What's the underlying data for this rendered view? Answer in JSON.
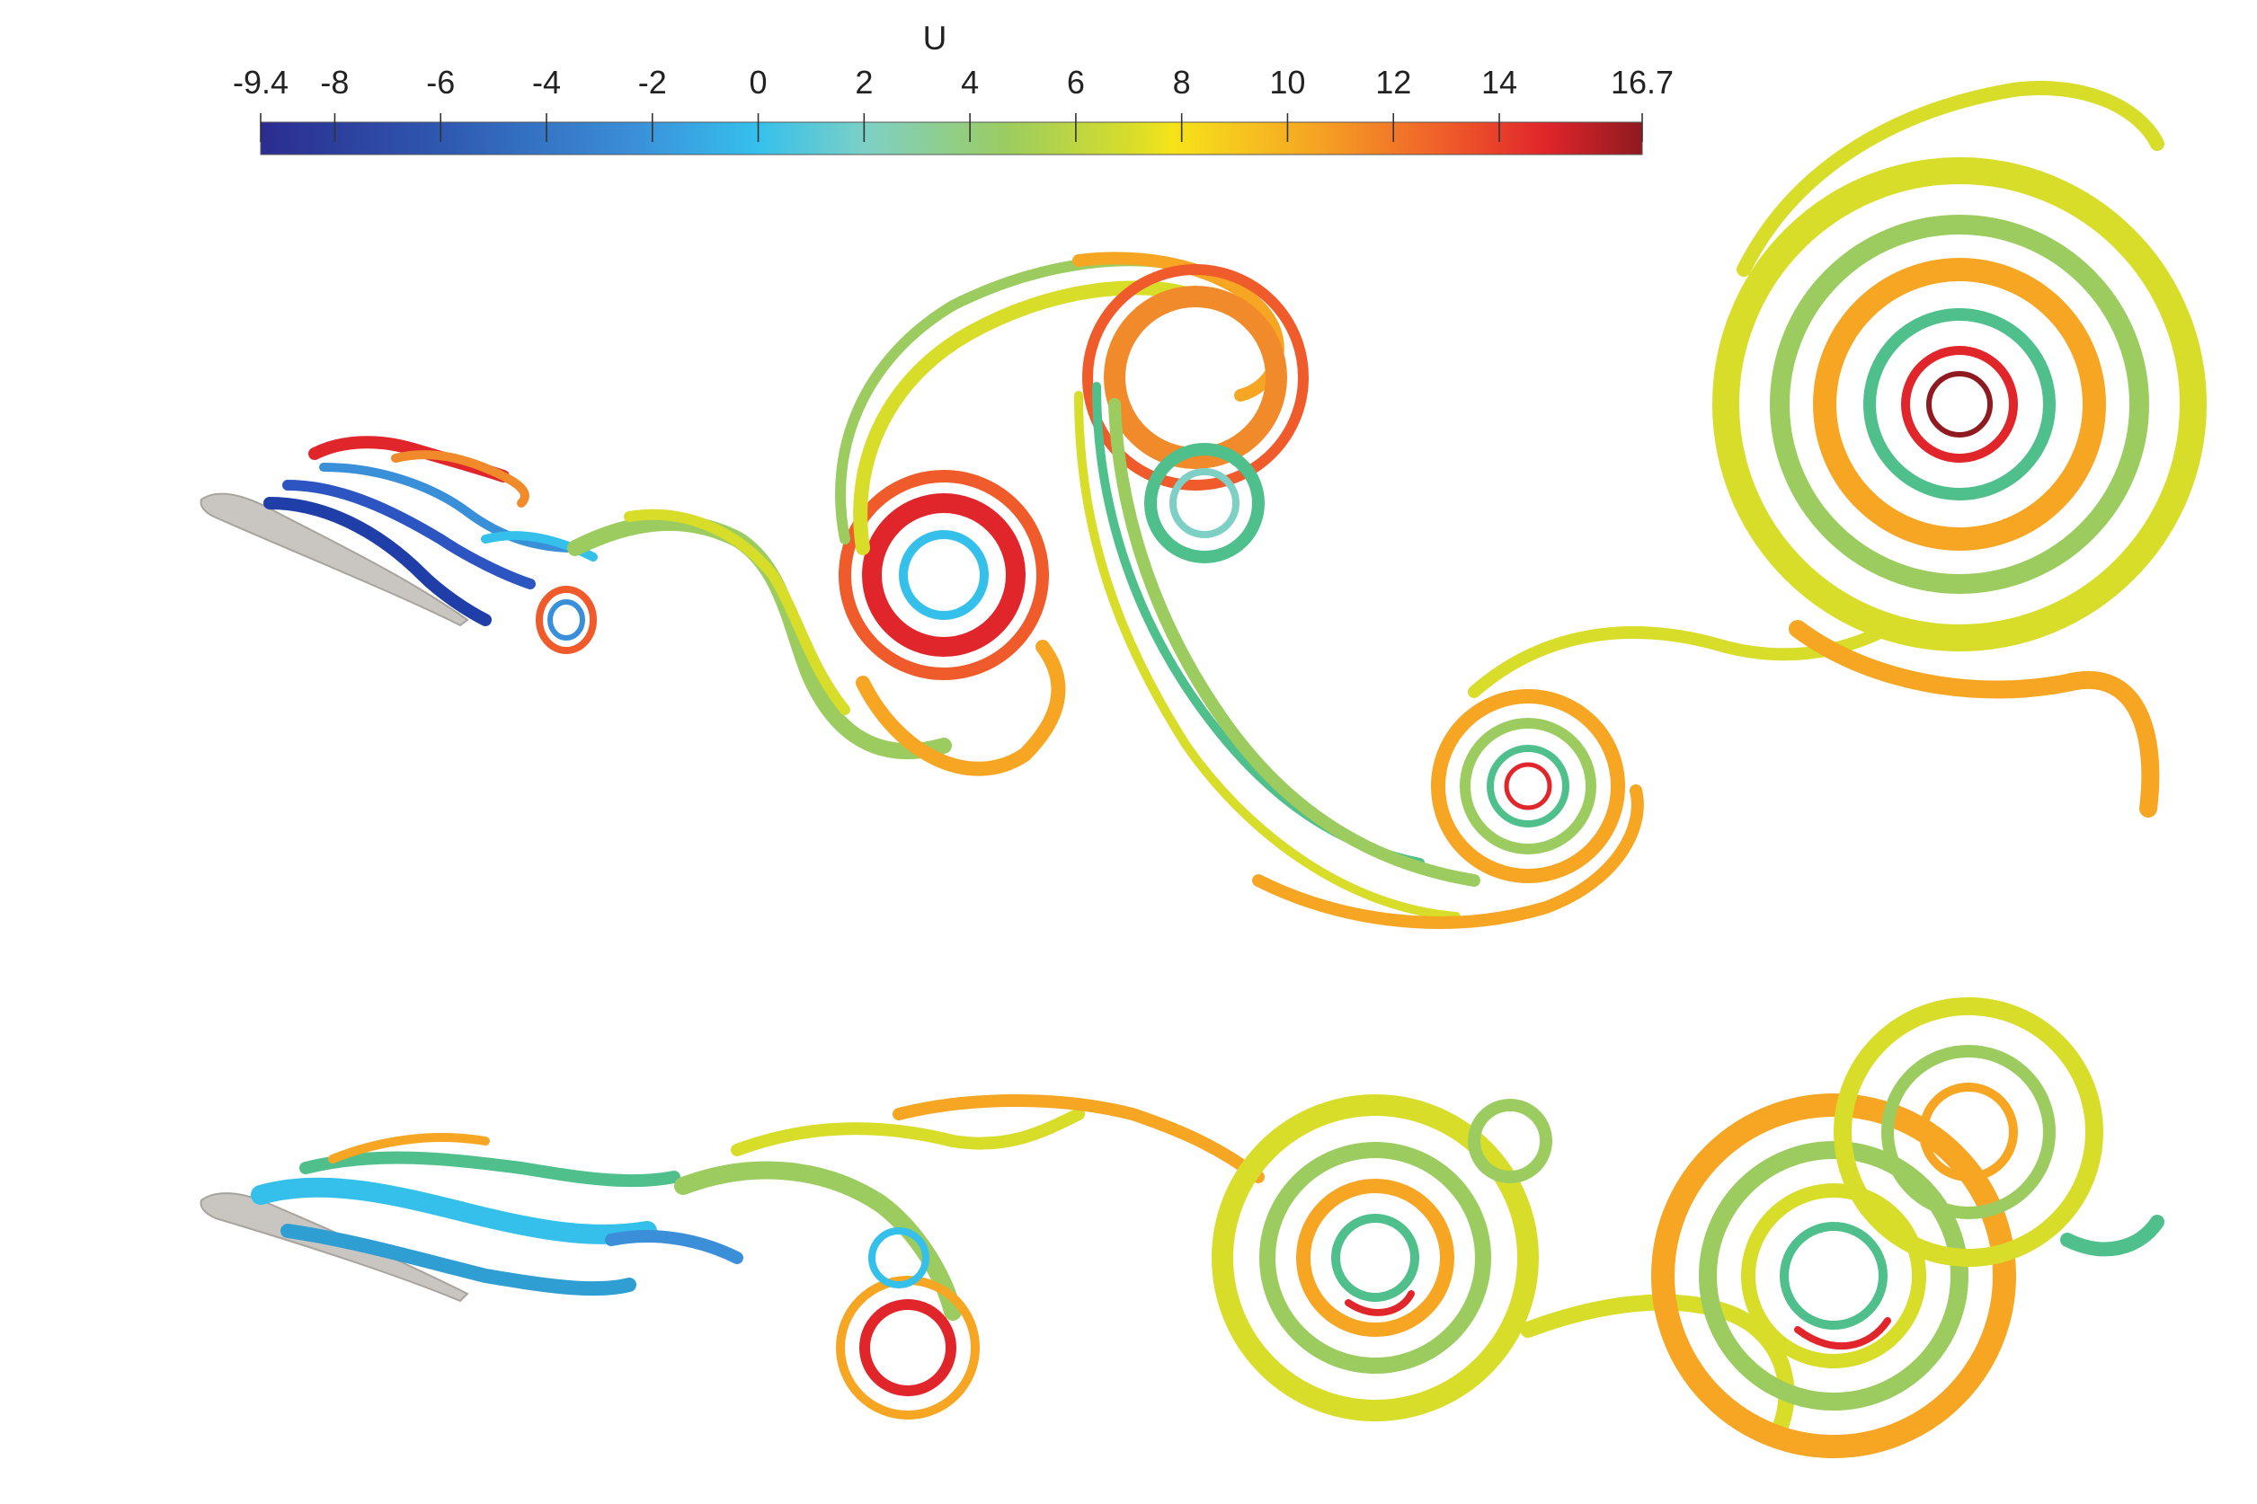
{
  "colorbar": {
    "title": "U",
    "min": -9.4,
    "max": 16.7,
    "ticks": [
      "-9.4",
      "-8",
      "-6",
      "-4",
      "-2",
      "0",
      "2",
      "4",
      "6",
      "8",
      "10",
      "12",
      "14",
      "16.7"
    ],
    "tick_values": [
      -9.4,
      -8,
      -6,
      -4,
      -2,
      0,
      2,
      4,
      6,
      8,
      10,
      12,
      14,
      16.7
    ],
    "colormap": [
      "#2b2c8f",
      "#2f5cb3",
      "#3b8fd8",
      "#35c0ec",
      "#7fd0c4",
      "#9ccc60",
      "#d8dd2a",
      "#f6e31a",
      "#f6a623",
      "#ef5b2a",
      "#e0252b",
      "#8f1a1f"
    ]
  },
  "panels": [
    {
      "name": "top-flow-panel"
    },
    {
      "name": "bottom-flow-panel"
    }
  ]
}
